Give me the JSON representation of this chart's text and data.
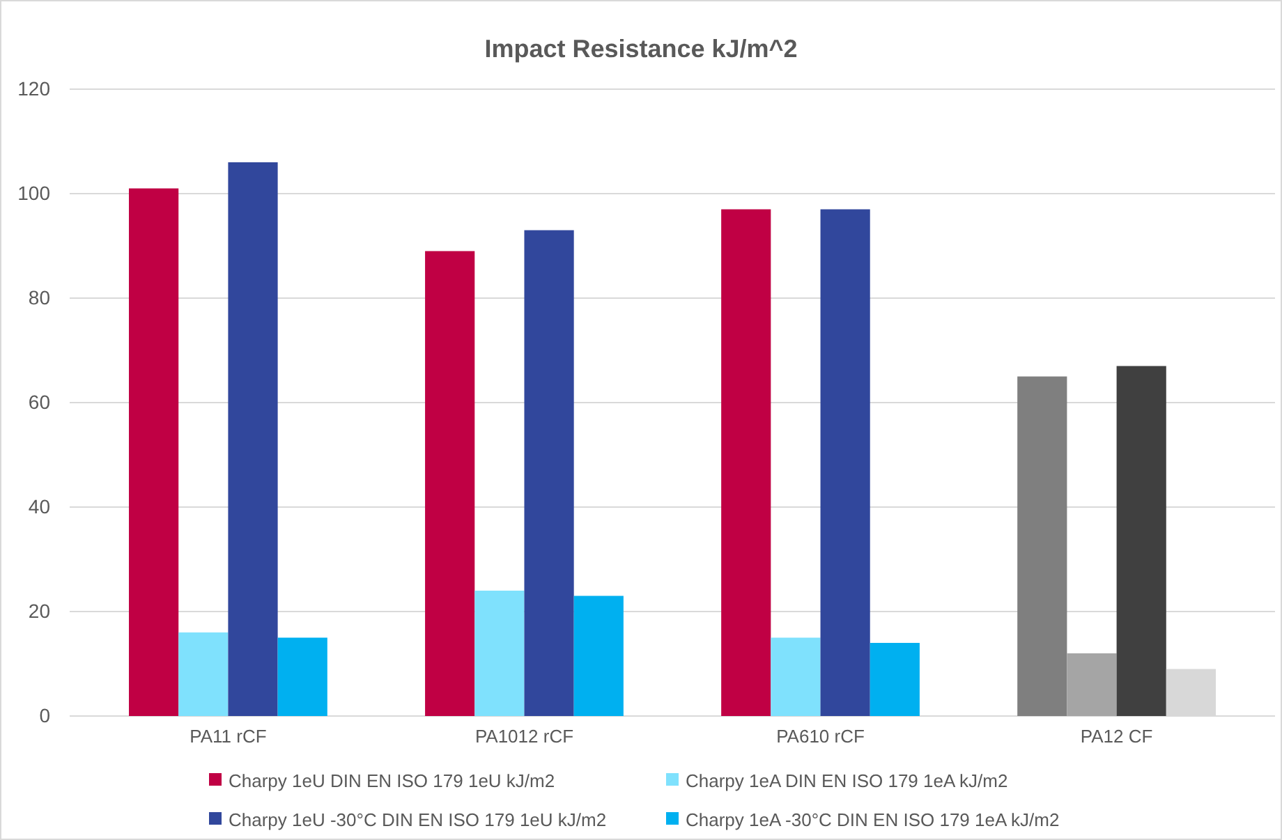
{
  "chart_data": {
    "type": "bar",
    "title": "Impact Resistance kJ/m^2",
    "categories": [
      "PA11 rCF",
      "PA1012 rCF",
      "PA610 rCF",
      "PA12 CF"
    ],
    "series": [
      {
        "name": "Charpy 1eU DIN EN ISO 179 1eU kJ/m2",
        "color": "#c00044",
        "colors": [
          "#c00044",
          "#c00044",
          "#c00044",
          "#7f7f7f"
        ],
        "values": [
          101,
          89,
          97,
          65
        ]
      },
      {
        "name": "Charpy 1eA DIN EN ISO 179 1eA kJ/m2",
        "color": "#7fe1fd",
        "colors": [
          "#7fe1fd",
          "#7fe1fd",
          "#7fe1fd",
          "#a5a5a5"
        ],
        "values": [
          16,
          24,
          15,
          12
        ]
      },
      {
        "name": "Charpy 1eU -30°C DIN EN ISO 179 1eU kJ/m2",
        "color": "#31479c",
        "colors": [
          "#31479c",
          "#31479c",
          "#31479c",
          "#404040"
        ],
        "values": [
          106,
          93,
          97,
          67
        ]
      },
      {
        "name": "Charpy 1eA -30°C DIN EN ISO 179 1eA kJ/m2",
        "color": "#00b0f0",
        "colors": [
          "#00b0f0",
          "#00b0f0",
          "#00b0f0",
          "#d8d8d8"
        ],
        "values": [
          15,
          23,
          14,
          9
        ]
      }
    ],
    "ylim": [
      0,
      120
    ],
    "yticks": [
      0,
      20,
      40,
      60,
      80,
      100,
      120
    ],
    "grid": "y",
    "legend": "bottom"
  }
}
